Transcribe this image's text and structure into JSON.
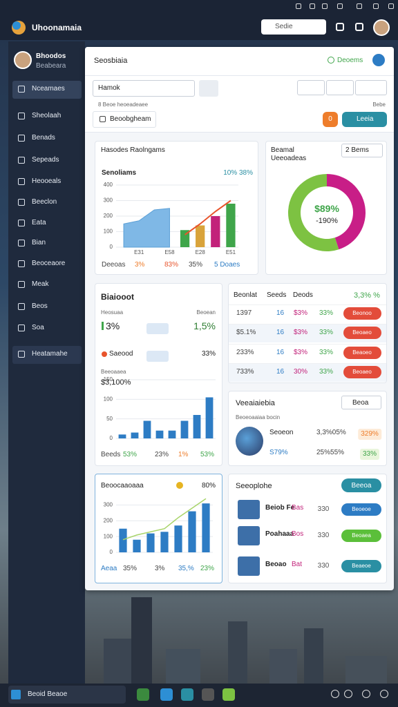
{
  "window": {
    "title": "Uhoonamaia",
    "search": "Sedie"
  },
  "sidebar": {
    "user": "Bhoodos",
    "role": "Beabeara",
    "items": [
      "Nceamaes",
      "Sheolaah",
      "Benads",
      "Sepeads",
      "Heooeals",
      "Beeclon",
      "Eata",
      "Bian",
      "Beoceaore",
      "Meak",
      "Beos",
      "Soa",
      "Heatamahe"
    ]
  },
  "header": {
    "title": "Seosbiaia",
    "status": "Deoems"
  },
  "toolbar": {
    "select": "Hamok",
    "note": "8 Beoe heoeadeaee",
    "link": "Bebe",
    "checkbox": "Beoobgheam",
    "count": "0",
    "action": "Leeia"
  },
  "charts": [
    {
      "type": "combo",
      "title": "Hasodes Raolngams",
      "subtitle": "Senoliams",
      "summary": "10% 38%",
      "ylim": [
        0,
        400
      ],
      "yticks": [
        0,
        100,
        200,
        300,
        400
      ],
      "categories": [
        null,
        "E31",
        null,
        "E58",
        null,
        "E28",
        null,
        "E51"
      ],
      "series": [
        {
          "type": "area",
          "color": "#7fb8e6",
          "values": [
            150,
            170,
            240,
            250,
            null,
            null,
            null,
            null
          ]
        },
        {
          "type": "bar",
          "colors": [
            null,
            null,
            null,
            null,
            "#3fa54a",
            "#d9a33a",
            "#c2227a",
            "#3fa54a"
          ],
          "values": [
            null,
            null,
            null,
            null,
            110,
            140,
            200,
            280
          ]
        },
        {
          "type": "line",
          "color": "#e8542c",
          "values": [
            null,
            null,
            null,
            null,
            80,
            150,
            230,
            300
          ]
        }
      ],
      "footer": [
        "Deeoas",
        "3%",
        "83%",
        "35%",
        "5 Doaes"
      ]
    },
    {
      "type": "donut",
      "title": "Beamal Ueeoadeas",
      "filter": "2 Bems",
      "center": "$89%",
      "center_sub": "-190%",
      "values": [
        45,
        55
      ],
      "colors": [
        "#c81e87",
        "#7dc242"
      ]
    },
    {
      "type": "bar",
      "title": "Biaiooot",
      "labels": [
        "Heosuaa",
        "Beoean",
        "Saeood",
        "Beeoaaea"
      ],
      "stats": [
        "3%",
        "1,5%",
        "33%",
        "$3,100%"
      ],
      "ylim": [
        0,
        150
      ],
      "yticks": [
        0,
        50,
        100,
        150
      ],
      "color": "#2d7cc4",
      "values": [
        10,
        15,
        45,
        20,
        20,
        45,
        60,
        105
      ],
      "footer": [
        "Beeds",
        "53%",
        "23%",
        "1%",
        "53%"
      ]
    },
    {
      "type": "combo",
      "title": "Beoocaaoaaa",
      "badge": "80%",
      "ylim": [
        0,
        350
      ],
      "yticks": [
        0,
        100,
        200,
        300
      ],
      "color": "#2d7cc4",
      "line_color": "#a8d46a",
      "values": [
        150,
        80,
        120,
        130,
        170,
        260,
        310
      ],
      "line_values": [
        80,
        110,
        130,
        150,
        220,
        280,
        340
      ],
      "footer": [
        "Aeaa",
        "35%",
        "3%",
        "35,%",
        "23%"
      ]
    }
  ],
  "table": {
    "header": [
      "Beonlat",
      "Seeds",
      "Deods",
      "3,3% %"
    ],
    "rows": [
      [
        "1397",
        "16",
        "$3%",
        "33%",
        "Beonoo"
      ],
      [
        "$5.1%",
        "16",
        "$3%",
        "33%",
        "Beoaeo"
      ],
      [
        "233%",
        "16",
        "$3%",
        "33%",
        "Beaoeo"
      ],
      [
        "733%",
        "16",
        "30%",
        "33%",
        "Beoaeo"
      ]
    ]
  },
  "summary": {
    "title": "Veeaiaiebia",
    "filter": "Beoa",
    "subtitle": "Beoeoaaiaa bocin",
    "rows": [
      [
        "Seoeon",
        "3,3%05%",
        "329%"
      ],
      [
        "S79%",
        "25%55%",
        "33%"
      ]
    ]
  },
  "list": {
    "title": "Seeoplohe",
    "button": "Beeoa",
    "items": [
      {
        "name": "Beiob Fe",
        "sub": "Bas",
        "value": "330",
        "action": "Beoeoe"
      },
      {
        "name": "Poahaaa",
        "sub": "Bos",
        "value": "330",
        "action": "Beoaea"
      },
      {
        "name": "Beoao",
        "sub": "Bat",
        "value": "330",
        "action": "Beaeoe"
      }
    ]
  },
  "taskbar": {
    "search": "Beoid Beaoe"
  }
}
